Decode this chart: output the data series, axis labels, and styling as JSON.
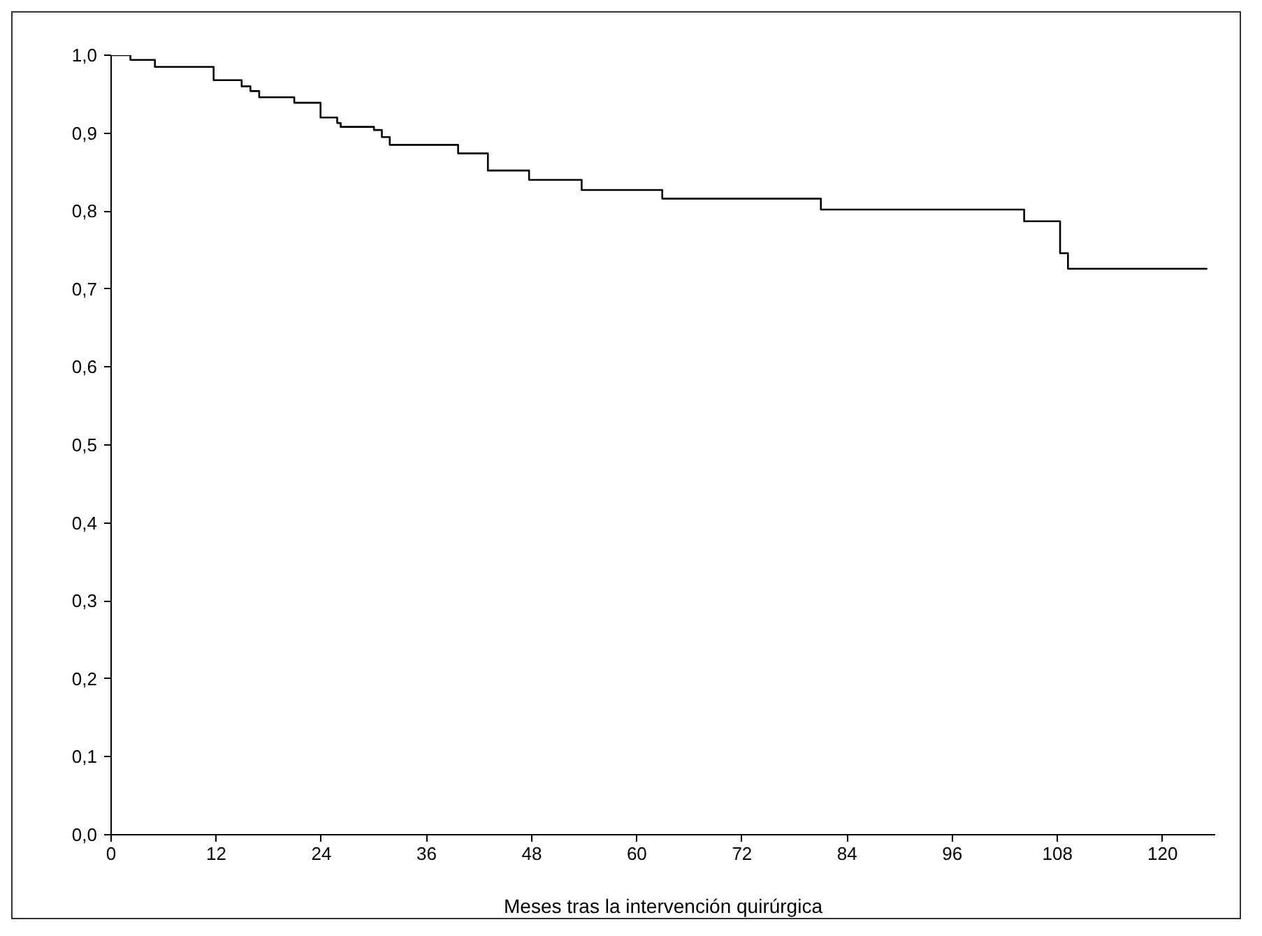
{
  "chart_data": {
    "type": "step",
    "xlabel": "Meses tras la intervención quirúrgica",
    "x": [
      0,
      2.2,
      5,
      11.7,
      14.9,
      15.9,
      16.9,
      20.9,
      23.9,
      25.8,
      26.2,
      30,
      30.9,
      31.8,
      39.6,
      43,
      47.7,
      53.7,
      62.9,
      81,
      104.2,
      108.3,
      109.2,
      125.1
    ],
    "series": [
      {
        "color": "#000000",
        "values": [
          1,
          0.994,
          0.985,
          0.968,
          0.96,
          0.954,
          0.946,
          0.939,
          0.92,
          0.913,
          0.908,
          0.904,
          0.895,
          0.885,
          0.874,
          0.852,
          0.84,
          0.827,
          0.816,
          0.802,
          0.787,
          0.746,
          0.726,
          0.726
        ]
      }
    ],
    "xlim": [
      0,
      126
    ],
    "xticks": [
      0,
      12,
      24,
      36,
      48,
      60,
      72,
      84,
      96,
      108,
      120
    ],
    "ylim": [
      0,
      1
    ],
    "yticks": [
      {
        "value": 0,
        "label": "0,0"
      },
      {
        "value": 0.1,
        "label": "0,1"
      },
      {
        "value": 0.2,
        "label": "0,2"
      },
      {
        "value": 0.3,
        "label": "0,3"
      },
      {
        "value": 0.4,
        "label": "0,4"
      },
      {
        "value": 0.5,
        "label": "0,5"
      },
      {
        "value": 0.6,
        "label": "0,6"
      },
      {
        "value": 0.7,
        "label": "0,7"
      },
      {
        "value": 0.8,
        "label": "0,8"
      },
      {
        "value": 0.9,
        "label": "0,9"
      },
      {
        "value": 1,
        "label": "1,0"
      }
    ],
    "grid": false,
    "marker": "none",
    "line_style": "solid"
  }
}
